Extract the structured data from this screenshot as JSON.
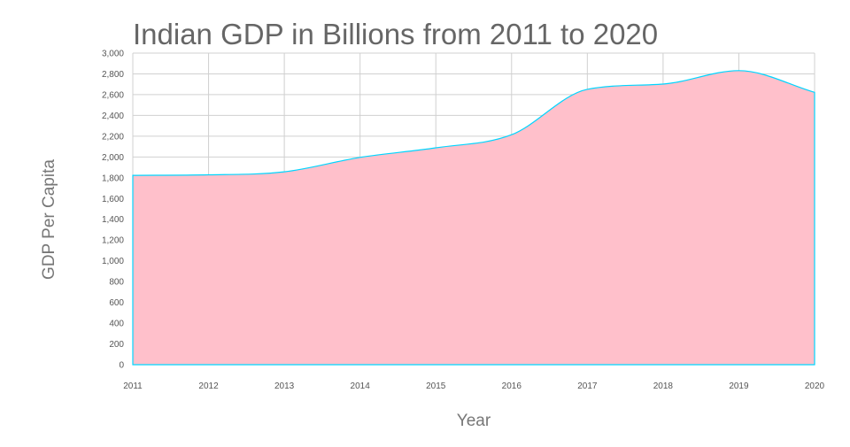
{
  "chart_data": {
    "type": "area",
    "title": "Indian GDP in Billions from 2011 to 2020",
    "xlabel": "Year",
    "ylabel": "GDP Per Capita",
    "x": [
      "2011",
      "2012",
      "2013",
      "2014",
      "2015",
      "2016",
      "2017",
      "2018",
      "2019",
      "2020"
    ],
    "series": [
      {
        "values": [
          1823,
          1828,
          1857,
          1996,
          2088,
          2214,
          2651,
          2702,
          2831,
          2622
        ],
        "color": "#00d5ff",
        "fill": "#ffc0cb"
      }
    ],
    "ylim": [
      0,
      3000
    ],
    "yticks": [
      "0",
      "200",
      "400",
      "600",
      "800",
      "1,000",
      "1,200",
      "1,400",
      "1,600",
      "1,800",
      "2,000",
      "2,200",
      "2,400",
      "2,600",
      "2,800",
      "3,000"
    ],
    "grid": true,
    "legend": "none",
    "colors": {
      "grid": "#d0d0d0",
      "title_text": "#666666",
      "axis_text": "#555555",
      "tick_text": "#888888"
    }
  }
}
